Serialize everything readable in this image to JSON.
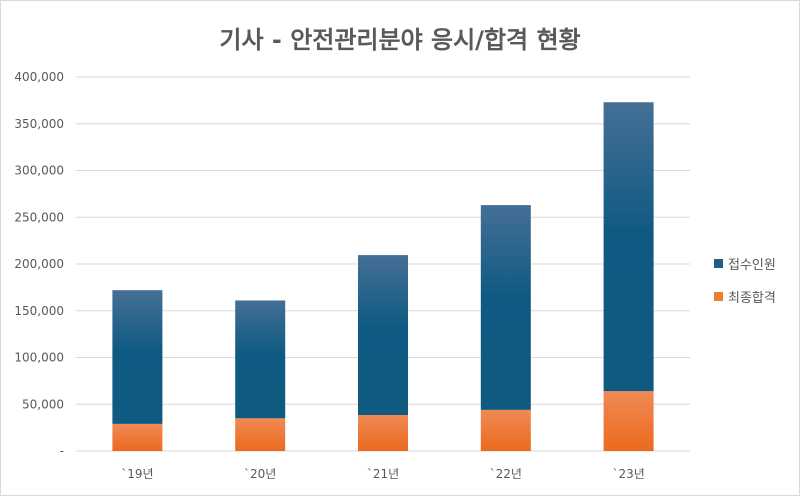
{
  "chart_data": {
    "type": "bar",
    "stacked": true,
    "title": "기사 - 안전관리분야 응시/합격 현황",
    "categories": [
      "`19년",
      "`20년",
      "`21년",
      "`22년",
      "`23년"
    ],
    "series": [
      {
        "name": "최종합격",
        "color": "#ed7d31",
        "values": [
          29000,
          35000,
          38500,
          44000,
          64000
        ]
      },
      {
        "name": "접수인원",
        "color": "#1f5f86",
        "values": [
          143000,
          126000,
          171000,
          219000,
          309000
        ]
      }
    ],
    "totals": [
      172000,
      161000,
      209500,
      263000,
      373000
    ],
    "ylim": [
      0,
      400000
    ],
    "yticks": [
      {
        "value": 0,
        "label": "-"
      },
      {
        "value": 50000,
        "label": "50,000"
      },
      {
        "value": 100000,
        "label": "100,000"
      },
      {
        "value": 150000,
        "label": "150,000"
      },
      {
        "value": 200000,
        "label": "200,000"
      },
      {
        "value": 250000,
        "label": "250,000"
      },
      {
        "value": 300000,
        "label": "300,000"
      },
      {
        "value": 350000,
        "label": "350,000"
      },
      {
        "value": 400000,
        "label": "400,000"
      }
    ],
    "grid": true,
    "legend_position": "right",
    "legend": [
      {
        "name": "접수인원",
        "color": "#1f5f86"
      },
      {
        "name": "최종합격",
        "color": "#ed7d31"
      }
    ]
  }
}
